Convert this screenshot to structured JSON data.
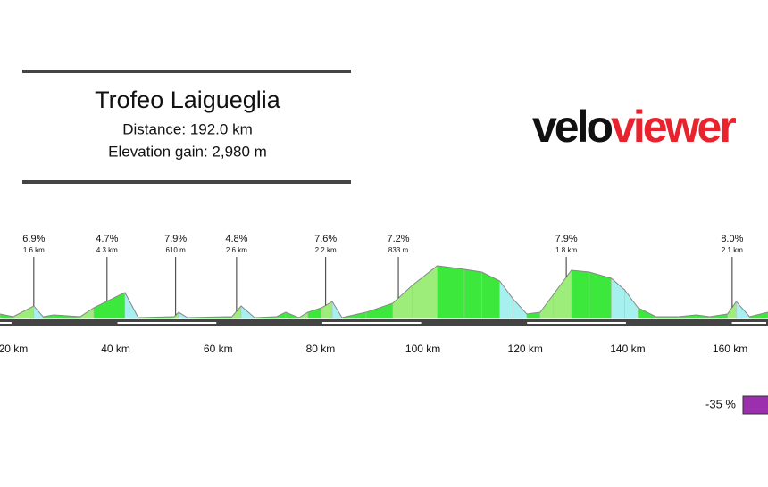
{
  "header": {
    "title": "Trofeo Laigueglia",
    "distance": "Distance: 192.0 km",
    "elevation_gain": "Elevation gain: 2,980 m"
  },
  "logo": {
    "part1": "velo",
    "part2": "viewer"
  },
  "chart_data": {
    "type": "area",
    "x": [
      17.4,
      20.0,
      24.0,
      25.8,
      27.9,
      33.1,
      35.7,
      41.8,
      44.4,
      51.4,
      52.3,
      54.0,
      62.7,
      64.5,
      67.1,
      71.4,
      73.2,
      75.8,
      77.5,
      80.2,
      82.3,
      84.2,
      88.9,
      94.1,
      97.9,
      102.8,
      108.1,
      111.5,
      115.0,
      117.6,
      120.3,
      122.9,
      125.5,
      129.0,
      132.5,
      136.8,
      139.4,
      142.0,
      145.5,
      149.9,
      153.4,
      156.0,
      159.5,
      161.2,
      163.8,
      167.4
    ],
    "values": [
      42,
      17,
      117,
      17,
      33,
      17,
      100,
      242,
      8,
      17,
      58,
      8,
      17,
      117,
      8,
      17,
      58,
      8,
      58,
      100,
      158,
      8,
      58,
      142,
      308,
      492,
      458,
      433,
      350,
      183,
      42,
      58,
      225,
      450,
      433,
      375,
      267,
      100,
      17,
      17,
      33,
      17,
      42,
      158,
      17,
      58
    ],
    "xlim": [
      17.4,
      167.4
    ],
    "ylim": [
      0,
      500
    ],
    "xticks": [
      {
        "value": 20,
        "label": "20 km"
      },
      {
        "value": 40,
        "label": "40 km"
      },
      {
        "value": 60,
        "label": "60 km"
      },
      {
        "value": 80,
        "label": "80 km"
      },
      {
        "value": 100,
        "label": "100 km"
      },
      {
        "value": 120,
        "label": "120 km"
      },
      {
        "value": 140,
        "label": "140 km"
      },
      {
        "value": 160,
        "label": "160 km"
      }
    ],
    "climbs": [
      {
        "km": 24.0,
        "grade": "6.9%",
        "length": "1.6 km"
      },
      {
        "km": 38.3,
        "grade": "4.7%",
        "length": "4.3 km"
      },
      {
        "km": 51.7,
        "grade": "7.9%",
        "length": "610 m"
      },
      {
        "km": 63.6,
        "grade": "4.8%",
        "length": "2.6 km"
      },
      {
        "km": 81.0,
        "grade": "7.6%",
        "length": "2.2 km"
      },
      {
        "km": 95.2,
        "grade": "7.2%",
        "length": "833 m"
      },
      {
        "km": 128.0,
        "grade": "7.9%",
        "length": "1.8 km"
      },
      {
        "km": 160.4,
        "grade": "8.0%",
        "length": "2.1 km"
      }
    ],
    "legend_label": "-35 %",
    "legend_color": "#9b2fae"
  }
}
